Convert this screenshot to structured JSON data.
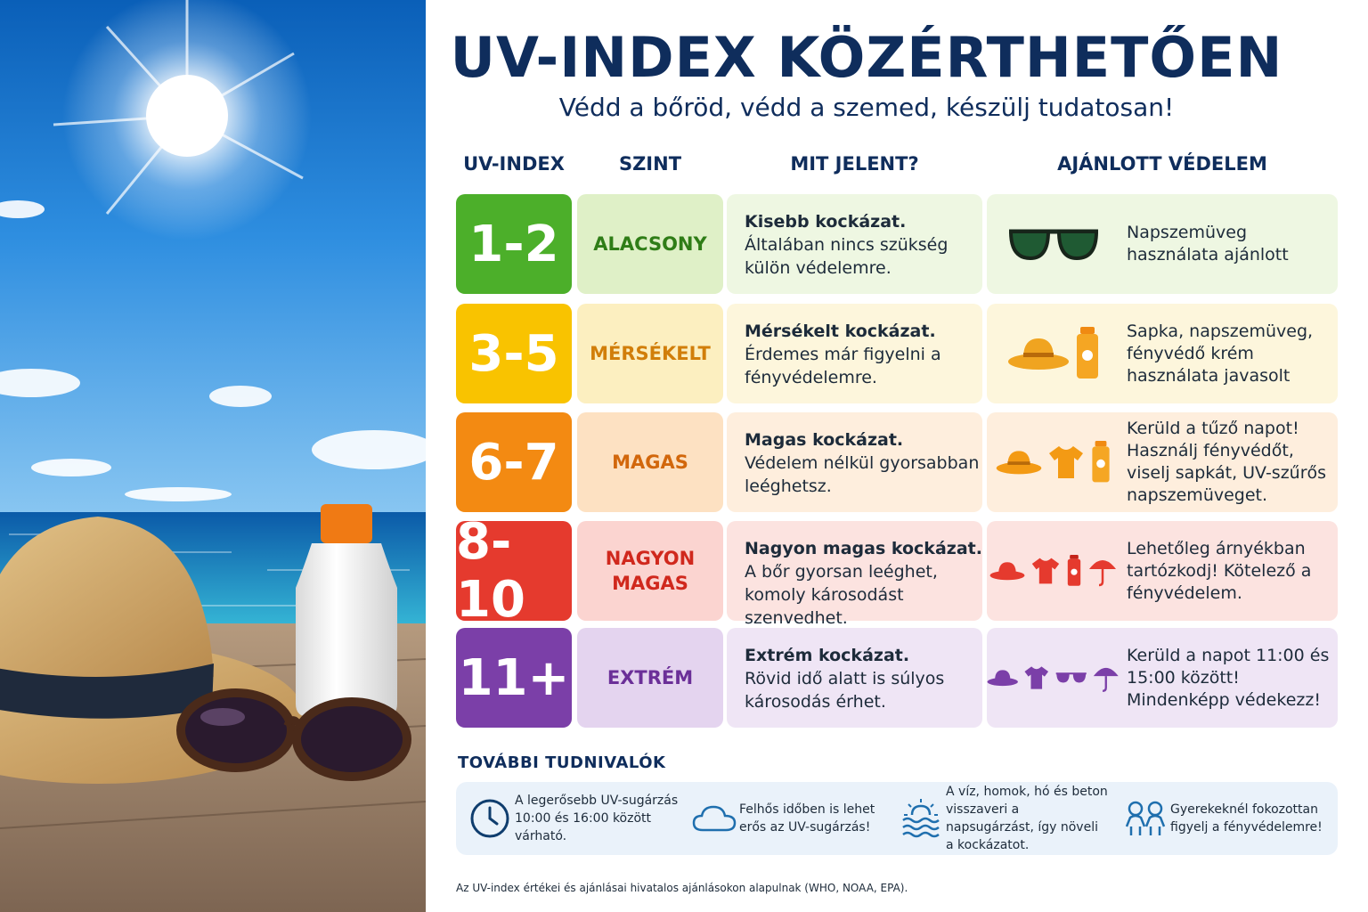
{
  "title": "UV-INDEX KÖZÉRTHETŐEN",
  "subtitle": "Védd a bőröd, védd a szemed, készülj tudatosan!",
  "columns": {
    "index": "UV-INDEX",
    "level": "SZINT",
    "meaning": "MIT JELENT?",
    "protection": "AJÁNLOTT VÉDELEM"
  },
  "rows": [
    {
      "index": "1-2",
      "level": "ALACSONY",
      "meaning_bold": "Kisebb kockázat.",
      "meaning": "Általában nincs szükség külön védelemre.",
      "protection": "Napszemüveg használata ajánlott",
      "icons": [
        "sunglasses-icon"
      ],
      "color": "#4caf2a"
    },
    {
      "index": "3-5",
      "level": "MÉRSÉKELT",
      "meaning_bold": "Mérsékelt kockázat.",
      "meaning": "Érdemes már figyelni a fényvédelemre.",
      "protection": "Sapka, napszemüveg, fényvédő krém használata javasolt",
      "icons": [
        "hat-icon",
        "sunscreen-icon"
      ],
      "color": "#f9c300"
    },
    {
      "index": "6-7",
      "level": "MAGAS",
      "meaning_bold": "Magas kockázat.",
      "meaning": "Védelem nélkül gyorsabban leéghetsz.",
      "protection": "Kerüld a tűző napot! Használj fényvédőt, viselj sapkát, UV-szűrős napszemüveget.",
      "icons": [
        "hat-icon",
        "tshirt-icon",
        "sunscreen-icon"
      ],
      "color": "#f38a12"
    },
    {
      "index": "8-10",
      "level": "NAGYON MAGAS",
      "meaning_bold": "Nagyon magas kockázat.",
      "meaning": "A bőr gyorsan leéghet, komoly károsodást szenvedhet.",
      "protection": "Lehetőleg árnyékban tartózkodj! Kötelező a fényvédelem.",
      "icons": [
        "hat-icon",
        "tshirt-icon",
        "sunscreen-icon",
        "umbrella-icon"
      ],
      "color": "#e53a2e"
    },
    {
      "index": "11+",
      "level": "EXTRÉM",
      "meaning_bold": "Extrém kockázat.",
      "meaning": "Rövid idő alatt is súlyos károsodás érhet.",
      "protection": "Kerüld a napot 11:00 és 15:00 között! Mindenképp védekezz!",
      "icons": [
        "hat-icon",
        "tshirt-icon",
        "sunglasses-icon",
        "umbrella-icon"
      ],
      "color": "#7b3fa8"
    }
  ],
  "more": {
    "title": "TOVÁBBI TUDNIVALÓK",
    "tips": [
      {
        "icon": "clock-icon",
        "text": "A legerősebb UV-sugárzás 10:00 és 16:00 között várható."
      },
      {
        "icon": "cloud-icon",
        "text": "Felhős időben is lehet erős az UV-sugárzás!"
      },
      {
        "icon": "sun-water-icon",
        "text": "A víz, homok, hó és beton visszaveri a napsugárzást, így növeli a kockázatot."
      },
      {
        "icon": "children-icon",
        "text": "Gyerekeknél fokozottan figyelj a fényvédelemre!"
      }
    ]
  },
  "footnote": "Az UV-index értékei és ajánlásai hivatalos ajánlásokon alapulnak (WHO, NOAA, EPA).",
  "colors": {
    "navy": "#0f2d5c",
    "low": "#4caf2a",
    "moderate": "#f9c300",
    "high": "#f38a12",
    "very_high": "#e53a2e",
    "extreme": "#7b3fa8"
  }
}
